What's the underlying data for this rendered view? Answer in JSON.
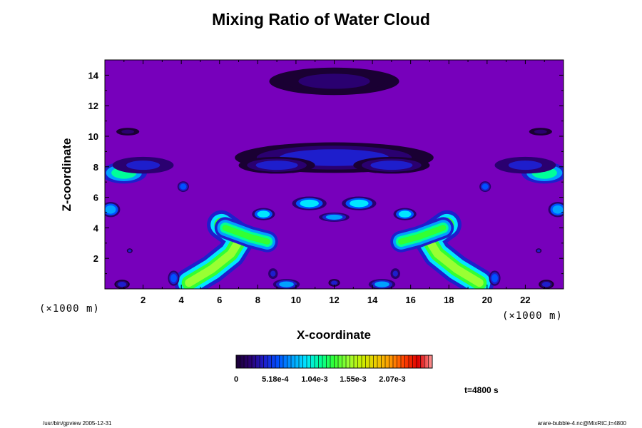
{
  "chart_data": {
    "type": "heatmap",
    "title": "Mixing Ratio of Water Cloud",
    "xlabel": "X-coordinate",
    "ylabel": "Z-coordinate",
    "x_unit": "(×1000 m)",
    "y_unit": "(×1000 m)",
    "xlim": [
      0,
      24
    ],
    "ylim": [
      0,
      15
    ],
    "x_ticks": [
      2,
      4,
      6,
      8,
      10,
      12,
      14,
      16,
      18,
      20,
      22
    ],
    "y_ticks": [
      2,
      4,
      6,
      8,
      10,
      12,
      14
    ],
    "colorbar": {
      "min": 0,
      "max": 0.0026,
      "tick_values": [
        0,
        0.000518,
        0.00104,
        0.00155,
        0.00207
      ],
      "tick_labels": [
        "0",
        "5.18e-4",
        "1.04e-3",
        "1.55e-3",
        "2.07e-3"
      ],
      "colors": [
        "#1a0033",
        "#2a0070",
        "#1e1ecc",
        "#0050ff",
        "#00a0ff",
        "#00e6ff",
        "#00ff99",
        "#33ff33",
        "#99ff33",
        "#ccee00",
        "#eecc00",
        "#ff9900",
        "#ff4000",
        "#dd0000",
        "#ff9999"
      ]
    },
    "background_color": "#7700bb",
    "time_label": "t=4800 s",
    "features": [
      {
        "shape": "band",
        "points": [
          [
            4.4,
            0.4
          ],
          [
            5.6,
            1.3
          ],
          [
            6.6,
            2.3
          ],
          [
            7.1,
            3.3
          ],
          [
            6.1,
            4.2
          ]
        ],
        "thickness": 0.95,
        "level": 0.00155
      },
      {
        "shape": "band",
        "points": [
          [
            6.3,
            4.0
          ],
          [
            7.6,
            3.4
          ],
          [
            8.5,
            3.1
          ]
        ],
        "thickness": 0.7,
        "level": 0.00125
      },
      {
        "shape": "band",
        "points": [
          [
            19.6,
            0.4
          ],
          [
            18.4,
            1.3
          ],
          [
            17.4,
            2.3
          ],
          [
            16.9,
            3.3
          ],
          [
            17.9,
            4.2
          ]
        ],
        "thickness": 0.95,
        "level": 0.00155
      },
      {
        "shape": "band",
        "points": [
          [
            17.7,
            4.0
          ],
          [
            16.4,
            3.4
          ],
          [
            15.5,
            3.1
          ]
        ],
        "thickness": 0.7,
        "level": 0.00125
      },
      {
        "shape": "blob",
        "x": 10.7,
        "z": 5.6,
        "rx": 0.9,
        "rz": 0.45,
        "level": 0.00095
      },
      {
        "shape": "blob",
        "x": 13.3,
        "z": 5.6,
        "rx": 0.9,
        "rz": 0.45,
        "level": 0.00095
      },
      {
        "shape": "blob",
        "x": 12.0,
        "z": 4.7,
        "rx": 0.8,
        "rz": 0.3,
        "level": 0.0007
      },
      {
        "shape": "blob",
        "x": 8.3,
        "z": 4.9,
        "rx": 0.6,
        "rz": 0.4,
        "level": 0.0009
      },
      {
        "shape": "blob",
        "x": 15.7,
        "z": 4.9,
        "rx": 0.6,
        "rz": 0.4,
        "level": 0.0009
      },
      {
        "shape": "blob",
        "x": 1.0,
        "z": 7.6,
        "rx": 1.2,
        "rz": 0.7,
        "level": 0.0011
      },
      {
        "shape": "blob",
        "x": 23.0,
        "z": 7.6,
        "rx": 1.2,
        "rz": 0.7,
        "level": 0.0011
      },
      {
        "shape": "blob",
        "x": 2.0,
        "z": 8.1,
        "rx": 1.6,
        "rz": 0.55,
        "level": 0.0005
      },
      {
        "shape": "blob",
        "x": 22.0,
        "z": 8.1,
        "rx": 1.6,
        "rz": 0.55,
        "level": 0.0005
      },
      {
        "shape": "blob",
        "x": 0.3,
        "z": 5.2,
        "rx": 0.5,
        "rz": 0.5,
        "level": 0.0008
      },
      {
        "shape": "blob",
        "x": 23.7,
        "z": 5.2,
        "rx": 0.5,
        "rz": 0.5,
        "level": 0.0008
      },
      {
        "shape": "blob",
        "x": 12.0,
        "z": 8.6,
        "rx": 5.2,
        "rz": 1.0,
        "level": 0.00035
      },
      {
        "shape": "blob",
        "x": 9.0,
        "z": 8.1,
        "rx": 2.0,
        "rz": 0.55,
        "level": 0.00045
      },
      {
        "shape": "blob",
        "x": 15.0,
        "z": 8.1,
        "rx": 2.0,
        "rz": 0.55,
        "level": 0.00045
      },
      {
        "shape": "blob",
        "x": 12.0,
        "z": 13.6,
        "rx": 3.4,
        "rz": 0.9,
        "level": 0.00018
      },
      {
        "shape": "blob",
        "x": 1.2,
        "z": 10.3,
        "rx": 0.6,
        "rz": 0.25,
        "level": 0.0002
      },
      {
        "shape": "blob",
        "x": 22.8,
        "z": 10.3,
        "rx": 0.6,
        "rz": 0.25,
        "level": 0.0002
      },
      {
        "shape": "blob",
        "x": 4.1,
        "z": 6.7,
        "rx": 0.3,
        "rz": 0.35,
        "level": 0.0006
      },
      {
        "shape": "blob",
        "x": 19.9,
        "z": 6.7,
        "rx": 0.3,
        "rz": 0.35,
        "level": 0.0006
      },
      {
        "shape": "blob",
        "x": 3.6,
        "z": 0.7,
        "rx": 0.3,
        "rz": 0.5,
        "level": 0.0006
      },
      {
        "shape": "blob",
        "x": 20.4,
        "z": 0.7,
        "rx": 0.3,
        "rz": 0.5,
        "level": 0.0006
      },
      {
        "shape": "blob",
        "x": 9.5,
        "z": 0.3,
        "rx": 0.7,
        "rz": 0.35,
        "level": 0.0007
      },
      {
        "shape": "blob",
        "x": 14.5,
        "z": 0.3,
        "rx": 0.7,
        "rz": 0.35,
        "level": 0.0007
      },
      {
        "shape": "blob",
        "x": 8.8,
        "z": 1.0,
        "rx": 0.25,
        "rz": 0.35,
        "level": 0.0005
      },
      {
        "shape": "blob",
        "x": 15.2,
        "z": 1.0,
        "rx": 0.25,
        "rz": 0.35,
        "level": 0.0005
      },
      {
        "shape": "blob",
        "x": 12.0,
        "z": 0.4,
        "rx": 0.3,
        "rz": 0.25,
        "level": 0.0004
      },
      {
        "shape": "blob",
        "x": 1.3,
        "z": 2.5,
        "rx": 0.15,
        "rz": 0.15,
        "level": 0.0004
      },
      {
        "shape": "blob",
        "x": 22.7,
        "z": 2.5,
        "rx": 0.15,
        "rz": 0.15,
        "level": 0.0004
      },
      {
        "shape": "blob",
        "x": 0.9,
        "z": 0.3,
        "rx": 0.4,
        "rz": 0.3,
        "level": 0.0004
      },
      {
        "shape": "blob",
        "x": 23.1,
        "z": 0.3,
        "rx": 0.4,
        "rz": 0.3,
        "level": 0.0004
      }
    ]
  },
  "footer": {
    "left": "/usr/bin/gpview 2005-12-31",
    "right": "arare-bubble-4.nc@MixRtC,t=4800"
  }
}
